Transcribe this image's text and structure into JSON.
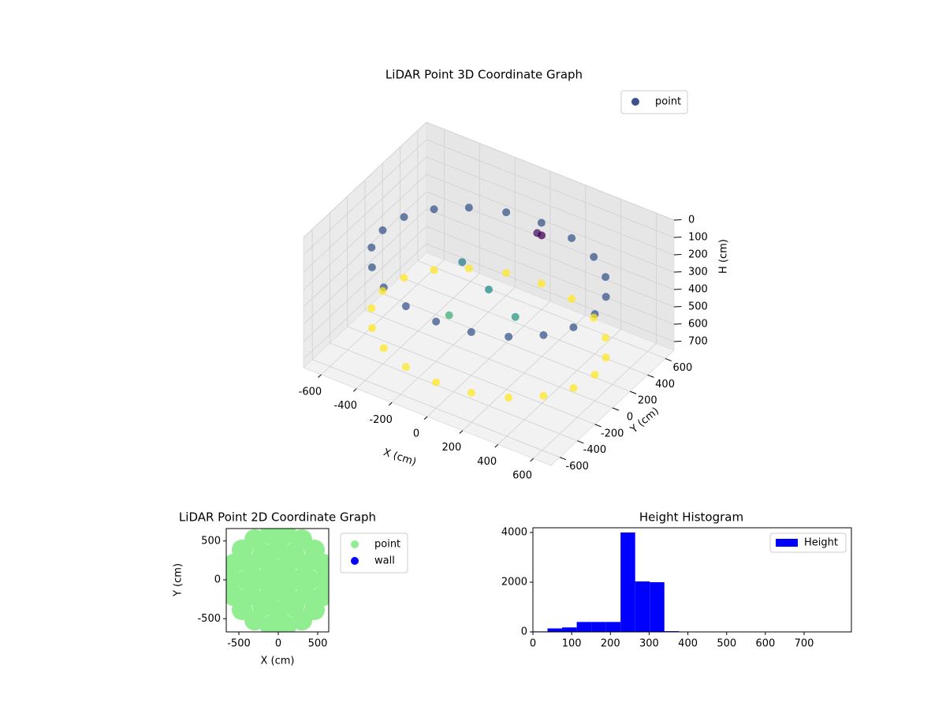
{
  "chart_data": [
    {
      "type": "scatter3d",
      "title": "LiDAR Point 3D Coordinate Graph",
      "xlabel": "X (cm)",
      "ylabel": "Y (cm)",
      "zlabel": "H (cm)",
      "colormap": "viridis",
      "legend": "upper right",
      "series": [
        {
          "name": "point",
          "color": "#3b528b",
          "x": [
            600,
            571,
            485,
            353,
            185,
            0,
            -185,
            -353,
            -485,
            -571,
            -600,
            -571,
            -485,
            -353,
            -185,
            0,
            185,
            353,
            485,
            571,
            600,
            571,
            485,
            353,
            185,
            0,
            -185,
            -353,
            -485,
            -571,
            -600,
            -571,
            -485,
            -353,
            -185,
            0,
            185,
            353,
            485,
            571,
            0,
            200,
            -200,
            -100,
            100,
            150
          ],
          "y": [
            0,
            185,
            353,
            485,
            571,
            600,
            571,
            485,
            353,
            185,
            0,
            -185,
            -353,
            -485,
            -571,
            -600,
            -571,
            -485,
            -353,
            -185,
            0,
            185,
            353,
            485,
            571,
            600,
            571,
            485,
            353,
            185,
            0,
            -185,
            -353,
            -485,
            -571,
            -600,
            -571,
            -485,
            -353,
            -185,
            0,
            -100,
            100,
            -250,
            350,
            300
          ],
          "z": [
            250,
            250,
            250,
            250,
            250,
            250,
            250,
            250,
            250,
            250,
            250,
            250,
            250,
            250,
            250,
            250,
            250,
            250,
            250,
            250,
            600,
            600,
            600,
            600,
            600,
            600,
            600,
            600,
            600,
            600,
            600,
            600,
            600,
            600,
            600,
            600,
            600,
            600,
            600,
            600,
            350,
            380,
            320,
            420,
            150,
            120
          ]
        }
      ],
      "xlim": [
        -700,
        700
      ],
      "ylim": [
        -700,
        700
      ],
      "zlim": [
        0,
        750
      ],
      "z_inverted": true,
      "xticks": [
        -600,
        -400,
        -200,
        0,
        200,
        400,
        600
      ],
      "yticks": [
        -600,
        -400,
        -200,
        0,
        200,
        400,
        600
      ],
      "zticks": [
        0,
        100,
        200,
        300,
        400,
        500,
        600,
        700
      ]
    },
    {
      "type": "scatter",
      "title": "LiDAR Point 2D Coordinate Graph",
      "xlabel": "X (cm)",
      "ylabel": "Y (cm)",
      "legend": "outside right",
      "series": [
        {
          "name": "point",
          "color": "#90ee90",
          "x": [
            0,
            200,
            100,
            -100,
            -200,
            -100,
            100,
            400,
            346,
            200,
            0,
            -200,
            -346,
            -400,
            -346,
            -200,
            0,
            200,
            346,
            600,
            564,
            460,
            300,
            104,
            -104,
            -300,
            -460,
            -564,
            -600,
            -564,
            -460,
            -300,
            -104,
            104,
            300,
            460,
            564
          ],
          "y": [
            0,
            0,
            173,
            173,
            0,
            -173,
            -173,
            0,
            200,
            346,
            400,
            346,
            200,
            0,
            -200,
            -346,
            -400,
            -346,
            -200,
            0,
            205,
            386,
            520,
            591,
            591,
            520,
            386,
            205,
            0,
            -205,
            -386,
            -520,
            -591,
            -591,
            -520,
            -386,
            -205
          ]
        },
        {
          "name": "wall",
          "color": "#0000ff",
          "x": [],
          "y": []
        }
      ],
      "xlim": [
        -660,
        640
      ],
      "ylim": [
        -670,
        660
      ],
      "xticks": [
        -500,
        0,
        500
      ],
      "yticks": [
        -500,
        0,
        500
      ]
    },
    {
      "type": "histogram",
      "title": "Height Histogram",
      "legend": "upper right",
      "series": [
        {
          "name": "Height",
          "color": "#0000ff",
          "bins": [
            0,
            37.7,
            75.4,
            113.1,
            150.8,
            188.5,
            226.2,
            263.9,
            301.6,
            339.3,
            377,
            414.7,
            452.4,
            490.1,
            527.8,
            565.5,
            603.2,
            640.9,
            678.6,
            716.3,
            754
          ],
          "counts": [
            20,
            140,
            180,
            400,
            400,
            400,
            4000,
            2030,
            2000,
            30,
            0,
            0,
            0,
            0,
            0,
            0,
            0,
            0,
            0,
            0
          ]
        }
      ],
      "xlim": [
        0,
        822
      ],
      "ylim": [
        0,
        4190
      ],
      "xticks": [
        0,
        100,
        200,
        300,
        400,
        500,
        600,
        700
      ],
      "yticks": [
        0,
        2000,
        4000
      ]
    }
  ]
}
